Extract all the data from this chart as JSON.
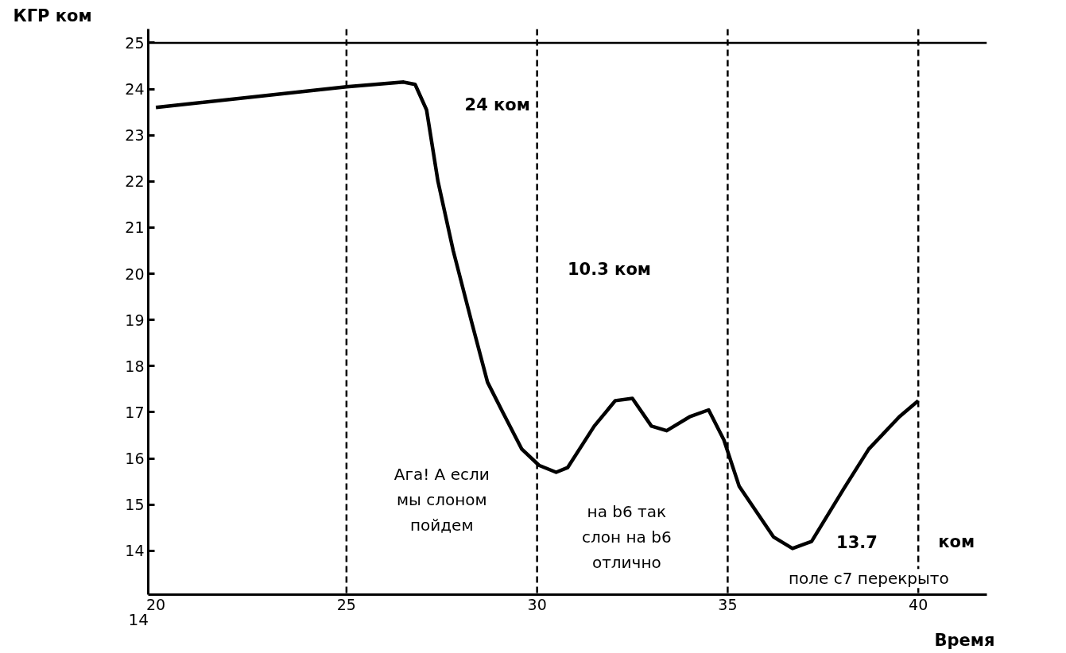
{
  "chart_data": {
    "type": "line",
    "xlabel": "Время",
    "ylabel": "КГР ком",
    "x": [
      20,
      25,
      26.5,
      26.8,
      27.1,
      27.4,
      27.8,
      28.3,
      28.7,
      29.1,
      29.6,
      30.05,
      30.5,
      30.8,
      31.5,
      32.05,
      32.5,
      33.0,
      33.4,
      34.0,
      34.5,
      34.9,
      35.3,
      36.2,
      36.7,
      37.2,
      38.05,
      38.7,
      39.5,
      40
    ],
    "series": [
      {
        "color": "#000000",
        "values": [
          23.6,
          24.05,
          24.15,
          24.1,
          23.55,
          22.0,
          20.5,
          18.9,
          17.65,
          17.0,
          16.2,
          15.85,
          15.7,
          15.8,
          16.7,
          17.25,
          17.3,
          16.7,
          16.6,
          16.9,
          17.05,
          16.4,
          15.4,
          14.3,
          14.05,
          14.2,
          15.35,
          16.2,
          16.9,
          17.25
        ]
      }
    ],
    "xlim": [
      19.8,
      41.8
    ],
    "ylim": [
      13.05,
      25.3
    ],
    "xticks": [
      20,
      25,
      30,
      35,
      40
    ],
    "yticks": [
      14,
      15,
      16,
      17,
      18,
      19,
      20,
      21,
      22,
      23,
      24,
      25
    ],
    "ref_lines": [
      {
        "axis": "y",
        "value": 25,
        "line_style": "solid",
        "color": "#000000"
      },
      {
        "axis": "x",
        "value": 25,
        "line_style": "dashed",
        "color": "#000000"
      },
      {
        "axis": "x",
        "value": 30,
        "line_style": "dashed",
        "color": "#000000"
      },
      {
        "axis": "x",
        "value": 35,
        "line_style": "dashed",
        "color": "#000000"
      },
      {
        "axis": "x",
        "value": 40,
        "line_style": "dashed",
        "color": "#000000"
      }
    ],
    "annotations": [
      "24 ком",
      "10.3 ком",
      "13.7",
      "ком",
      "Ага! А если\nмы слоном\nпойдем",
      "на b6 так\nслон на b6\nотлично",
      "поле c7 перекрыто",
      "14"
    ],
    "grid": false,
    "marker": "none",
    "line_style": "solid"
  }
}
